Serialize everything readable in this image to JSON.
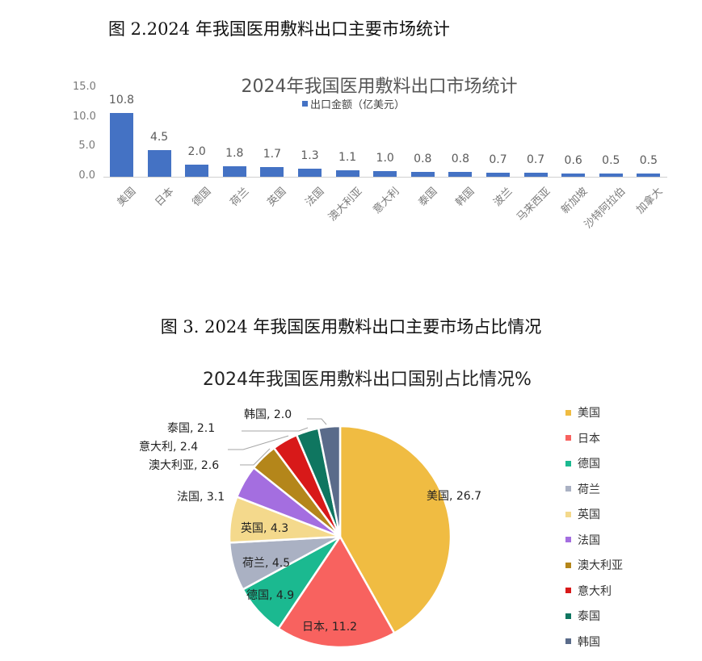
{
  "captions": {
    "fig2": "图 2.2024 年我国医用敷料出口主要市场统计",
    "fig3": "图 3.  2024 年我国医用敷料出口主要市场占比情况"
  },
  "chart_data": [
    {
      "type": "bar",
      "title": "2024年我国医用敷料出口市场统计",
      "legend": [
        "出口金额（亿美元）"
      ],
      "legend_position": "top",
      "xlabel": "",
      "ylabel": "",
      "ylim": [
        0,
        15
      ],
      "yticks": [
        "0.0",
        "5.0",
        "10.0",
        "15.0"
      ],
      "grid": false,
      "color": "#4472c4",
      "categories": [
        "美国",
        "日本",
        "德国",
        "荷兰",
        "英国",
        "法国",
        "澳大利亚",
        "意大利",
        "泰国",
        "韩国",
        "波兰",
        "马来西亚",
        "新加坡",
        "沙特阿拉伯",
        "加拿大"
      ],
      "values": [
        10.8,
        4.5,
        2.0,
        1.8,
        1.7,
        1.3,
        1.1,
        1.0,
        0.8,
        0.8,
        0.7,
        0.7,
        0.6,
        0.5,
        0.5
      ],
      "value_labels": [
        "10.8",
        "4.5",
        "2.0",
        "1.8",
        "1.7",
        "1.3",
        "1.1",
        "1.0",
        "0.8",
        "0.8",
        "0.7",
        "0.7",
        "0.6",
        "0.5",
        "0.5"
      ]
    },
    {
      "type": "pie",
      "title": "2024年我国医用敷料出口国别占比情况%",
      "legend_position": "right",
      "categories": [
        "美国",
        "日本",
        "德国",
        "荷兰",
        "英国",
        "法国",
        "澳大利亚",
        "意大利",
        "泰国",
        "韩国"
      ],
      "values": [
        26.7,
        11.2,
        4.9,
        4.5,
        4.3,
        3.1,
        2.6,
        2.4,
        2.1,
        2.0
      ],
      "labels": [
        "美国, 26.7",
        "日本, 11.2",
        "德国, 4.9",
        "荷兰, 4.5",
        "英国, 4.3",
        "法国, 3.1",
        "澳大利亚, 2.6",
        "意大利, 2.4",
        "泰国, 2.1",
        "韩国, 2.0"
      ],
      "colors": [
        "#f0bc42",
        "#f8625f",
        "#1bb990",
        "#aab1c3",
        "#f4d98c",
        "#a46ee0",
        "#b4861a",
        "#d81919",
        "#0f7660",
        "#5a6b8a"
      ]
    }
  ]
}
